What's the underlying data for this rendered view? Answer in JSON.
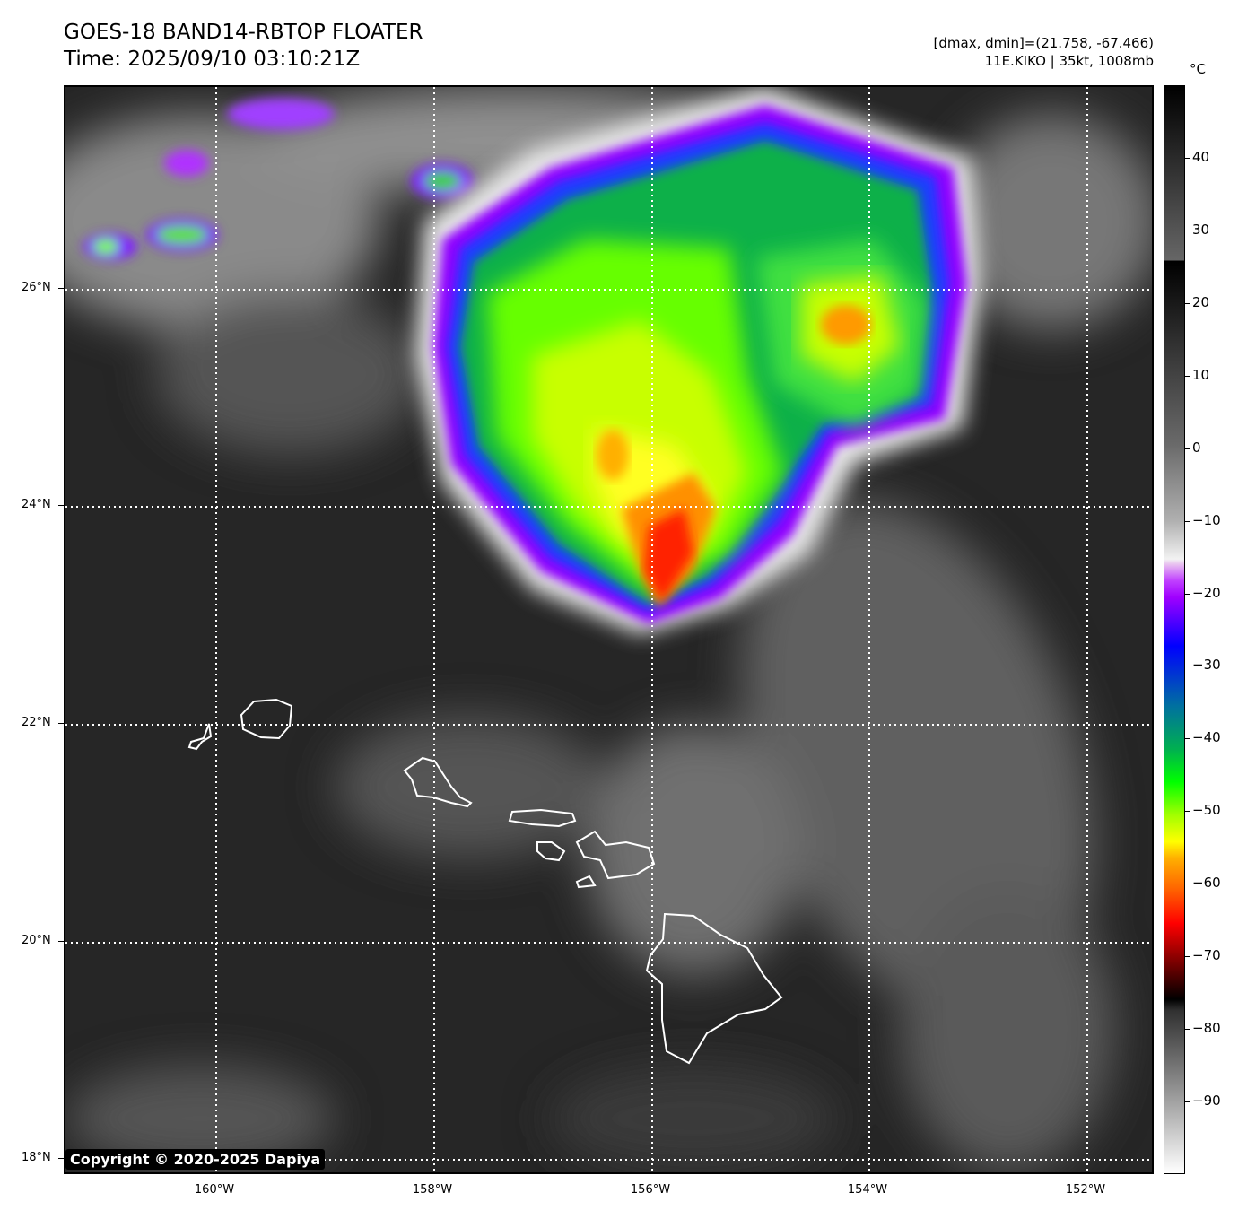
{
  "header": {
    "title_line1": "GOES-18 BAND14-RBTOP FLOATER",
    "title_line2": "Time: 2025/09/10 03:10:21Z",
    "info_line1": "[dmax, dmin]=(21.758, -67.466)",
    "info_line2": "11E.KIKO | 35kt, 1008mb"
  },
  "map": {
    "lat_labels": [
      "26°N",
      "24°N",
      "22°N",
      "20°N",
      "18°N"
    ],
    "lon_labels": [
      "160°W",
      "158°W",
      "156°W",
      "154°W",
      "152°W"
    ],
    "copyright": "Copyright © 2020-2025 Dapiya"
  },
  "colorbar": {
    "unit": "°C",
    "range": [
      -100,
      50
    ],
    "tick_labels": [
      "40",
      "30",
      "20",
      "10",
      "0",
      "−10",
      "−20",
      "−30",
      "−40",
      "−50",
      "−60",
      "−70",
      "−80",
      "−90"
    ]
  }
}
